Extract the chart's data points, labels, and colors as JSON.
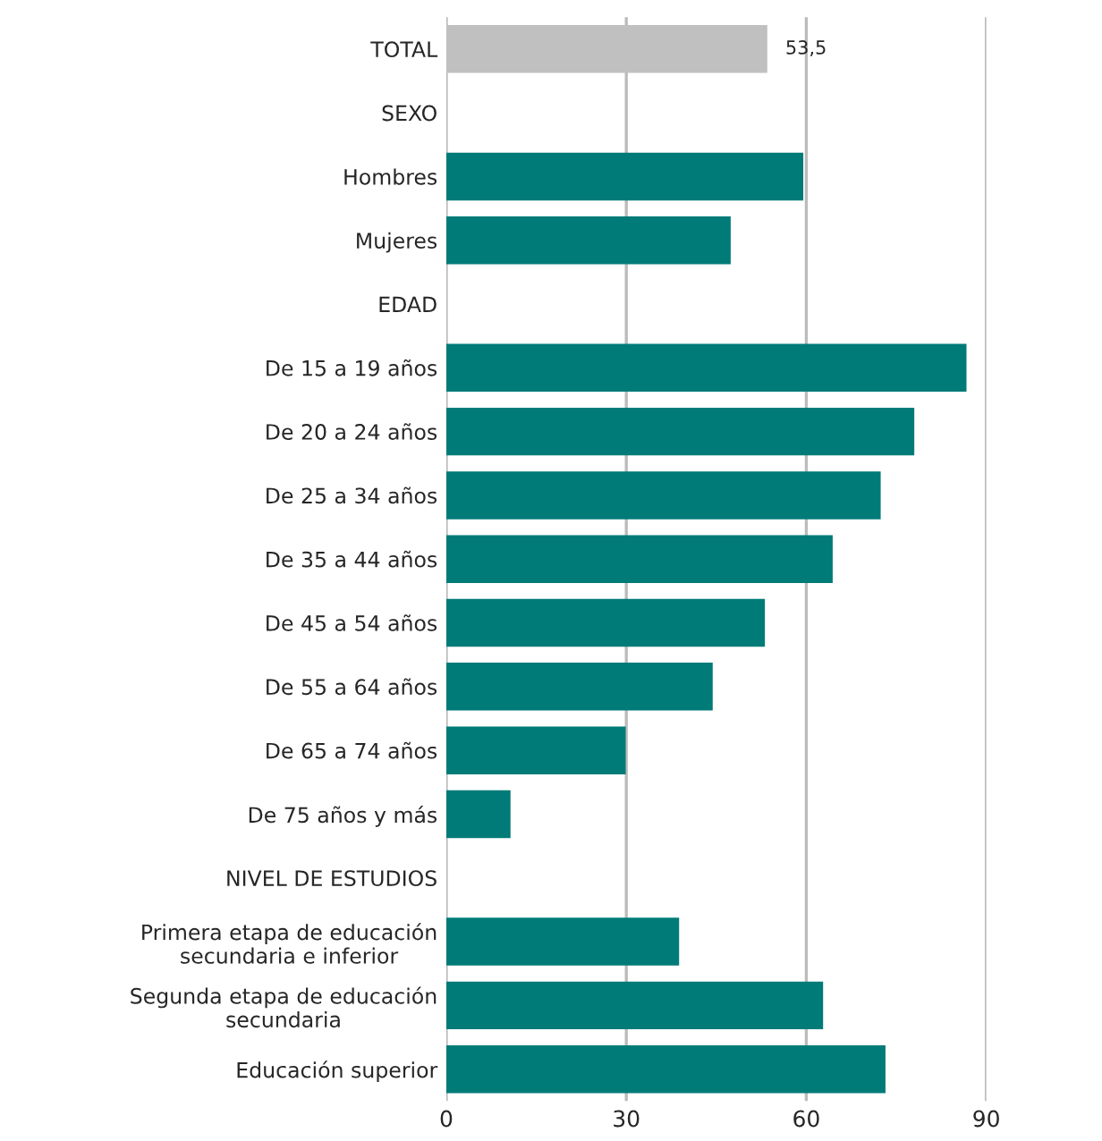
{
  "chart_data": {
    "type": "bar",
    "orientation": "horizontal",
    "categories": [
      "TOTAL",
      "SEXO",
      "Hombres",
      "Mujeres",
      "EDAD",
      "De 15 a 19 años",
      "De 20 a 24 años",
      "De 25 a 34 años",
      "De 35 a 44 años",
      "De 45 a 54 años",
      "De 55 a 64 años",
      "De 65 a 74 años",
      "De 75 años y más",
      "NIVEL DE ESTUDIOS",
      "Primera etapa de educación\nsecundaria e inferior",
      "Segunda etapa de educación\nsecundaria",
      "Educación superior"
    ],
    "values": [
      53.5,
      null,
      59.5,
      47.4,
      null,
      86.7,
      78.0,
      72.4,
      64.4,
      53.1,
      44.4,
      29.9,
      10.7,
      null,
      38.8,
      62.8,
      73.2
    ],
    "colors": [
      "#c0c0c0",
      null,
      "#007b78",
      "#007b78",
      null,
      "#007b78",
      "#007b78",
      "#007b78",
      "#007b78",
      "#007b78",
      "#007b78",
      "#007b78",
      "#007b78",
      null,
      "#007b78",
      "#007b78",
      "#007b78"
    ],
    "value_labels": [
      "53,5",
      null,
      null,
      null,
      null,
      null,
      null,
      null,
      null,
      null,
      null,
      null,
      null,
      null,
      null,
      null,
      null
    ],
    "xlim": [
      0,
      90
    ],
    "xticks": [
      0,
      30,
      60,
      90
    ],
    "grid": "x",
    "legend": false
  }
}
